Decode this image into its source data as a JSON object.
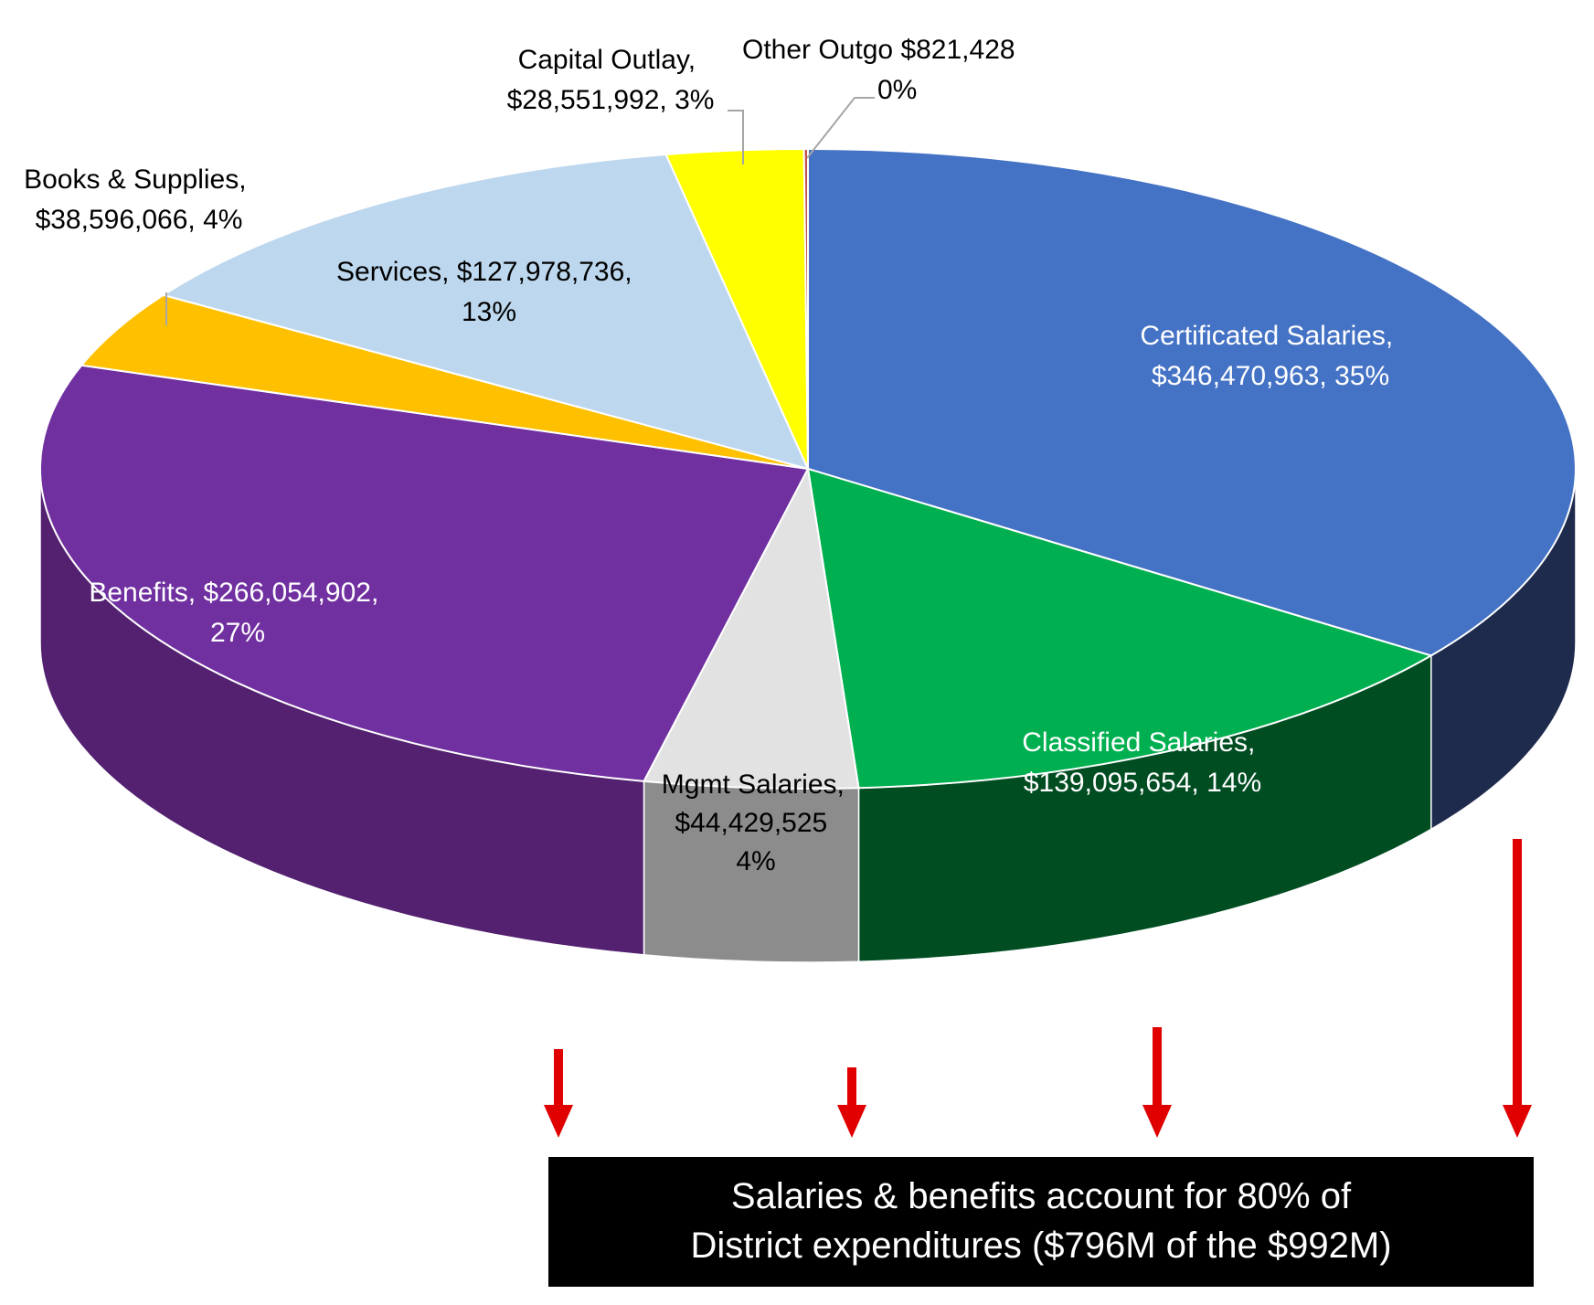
{
  "chart_data": {
    "type": "pie",
    "style": "3d",
    "title": "",
    "slices": [
      {
        "key": "certificated",
        "name": "Certificated Salaries,",
        "amount": "$346,470,963,",
        "percent_label": "35%",
        "value": 346470963,
        "color": "#4472c4",
        "side": "#1f2b4d"
      },
      {
        "key": "classified",
        "name": "Classified Salaries,",
        "amount": "$139,095,654,",
        "percent_label": "14%",
        "value": 139095654,
        "color": "#00b050",
        "side": "#004d22"
      },
      {
        "key": "mgmt",
        "name": "Mgmt Salaries,",
        "amount": "$44,429,525",
        "percent_label": "4%",
        "value": 44429525,
        "color": "#e2e2e2",
        "side": "#8c8c8c"
      },
      {
        "key": "benefits",
        "name": "Benefits, $266,054,902,",
        "amount": "",
        "percent_label": "27%",
        "value": 266054902,
        "color": "#7030a0",
        "side": "#532170"
      },
      {
        "key": "books",
        "name": "Books & Supplies,",
        "amount": "$38,596,066,",
        "percent_label": "4%",
        "value": 38596066,
        "color": "#ffc000",
        "side": "#b38600"
      },
      {
        "key": "services",
        "name": "Services, $127,978,736,",
        "amount": "",
        "percent_label": "13%",
        "value": 127978736,
        "color": "#bdd7ee",
        "side": "#7f99b3"
      },
      {
        "key": "capital",
        "name": "Capital Outlay,",
        "amount": "$28,551,992,",
        "percent_label": "3%",
        "value": 28551992,
        "color": "#ffff00",
        "side": "#b3b300"
      },
      {
        "key": "other",
        "name": "Other Outgo",
        "amount": "$821,428",
        "percent_label": "0%",
        "value": 821428,
        "color": "#c0504d",
        "side": "#8c3331"
      }
    ]
  },
  "callout": {
    "line1": "Salaries & benefits account for 80% of",
    "line2": "District expenditures ($796M of the $992M)"
  },
  "colors": {
    "arrow": "#e00000",
    "callout_bg": "#000000",
    "callout_text": "#ffffff"
  }
}
